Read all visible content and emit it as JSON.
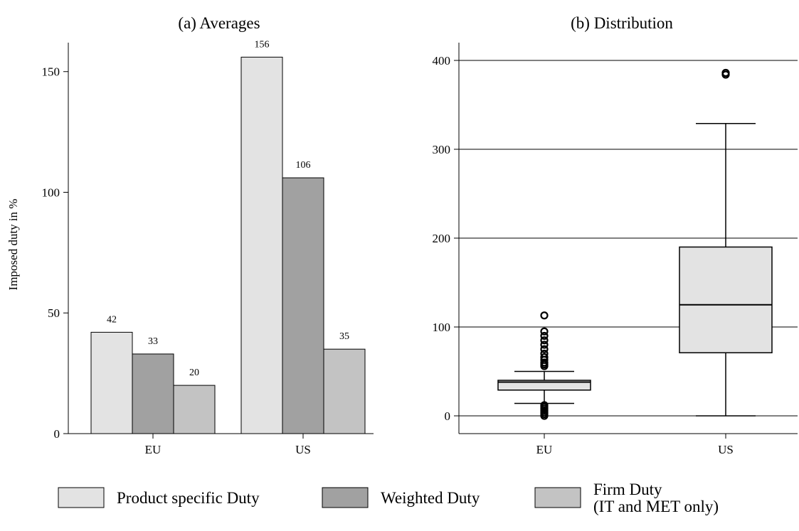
{
  "chart_data": [
    {
      "type": "bar",
      "title": "(a) Averages",
      "ylabel": "Imposed duty in %",
      "categories": [
        "EU",
        "US"
      ],
      "ylim": [
        0,
        162
      ],
      "yticks": [
        0,
        50,
        100,
        150
      ],
      "series": [
        {
          "name": "Product specific Duty",
          "values": [
            42,
            156
          ],
          "labels": [
            "42",
            "156"
          ],
          "color": "#e3e3e3"
        },
        {
          "name": "Weighted Duty",
          "values": [
            33,
            106
          ],
          "labels": [
            "33",
            "106"
          ],
          "color": "#a1a1a1"
        },
        {
          "name": "Firm Duty (IT and MET only)",
          "values": [
            20,
            35
          ],
          "labels": [
            "20",
            "35"
          ],
          "color": "#c3c3c3"
        }
      ]
    },
    {
      "type": "box",
      "title": "(b) Distribution",
      "categories": [
        "EU",
        "US"
      ],
      "ylim": [
        -20,
        420
      ],
      "yticks": [
        0,
        100,
        200,
        300,
        400
      ],
      "grid": "horizontal",
      "boxes": [
        {
          "category": "EU",
          "whisker_low": 14,
          "q1": 29,
          "median": 38,
          "q3": 40,
          "whisker_high": 50,
          "outliers": [
            0,
            2,
            4,
            6,
            8,
            10,
            12,
            56,
            58,
            60,
            63,
            66,
            70,
            75,
            80,
            85,
            90,
            95,
            113
          ],
          "color": "#e3e3e3"
        },
        {
          "category": "US",
          "whisker_low": 0,
          "q1": 71,
          "median": 125,
          "q3": 190,
          "whisker_high": 329,
          "outliers": [
            384,
            386
          ],
          "color": "#e3e3e3"
        }
      ]
    }
  ],
  "legend": {
    "placement": "bottom",
    "items": [
      {
        "lines": [
          "Product specific Duty"
        ],
        "color": "#e3e3e3"
      },
      {
        "lines": [
          "Weighted Duty"
        ],
        "color": "#a1a1a1"
      },
      {
        "lines": [
          "Firm Duty",
          "(IT and MET only)"
        ],
        "color": "#c3c3c3"
      }
    ]
  }
}
